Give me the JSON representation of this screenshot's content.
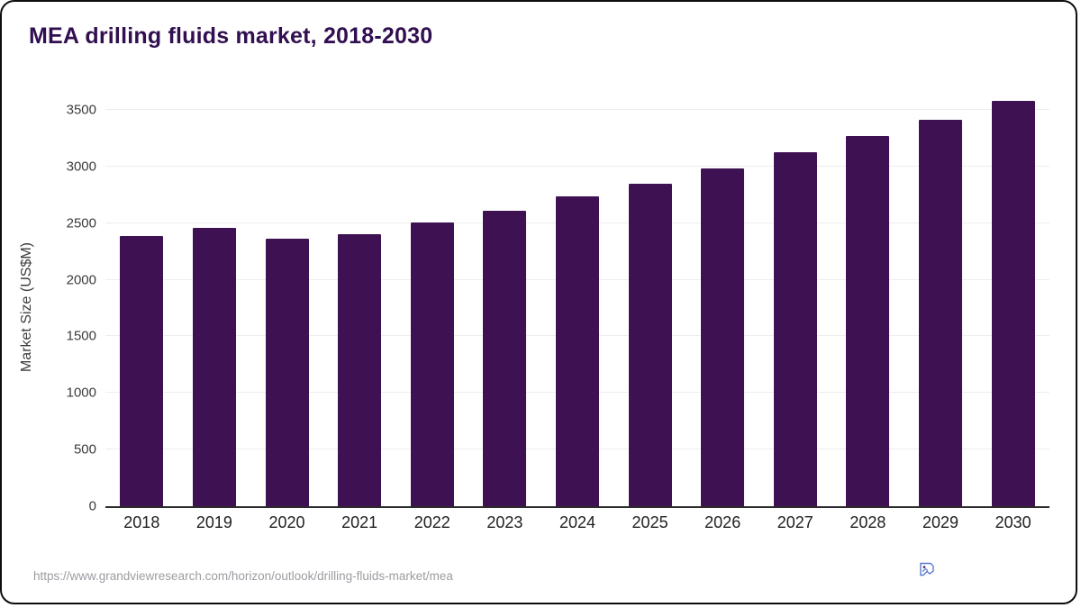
{
  "chart_data": {
    "type": "bar",
    "title": "MEA drilling fluids market, 2018-2030",
    "categories": [
      "2018",
      "2019",
      "2020",
      "2021",
      "2022",
      "2023",
      "2024",
      "2025",
      "2026",
      "2027",
      "2028",
      "2029",
      "2030"
    ],
    "values": [
      2390,
      2460,
      2360,
      2405,
      2505,
      2610,
      2735,
      2850,
      2985,
      3125,
      3270,
      3415,
      3580
    ],
    "xlabel": "",
    "ylabel": "Market Size (US$M)",
    "ylim": [
      0,
      3500
    ],
    "y_ticks": [
      0,
      500,
      1000,
      1500,
      2000,
      2500,
      3000,
      3500
    ],
    "grid": true,
    "legend": false,
    "bar_color": "#3e1153"
  },
  "footer": {
    "source_url": "https://www.grandviewresearch.com/horizon/outlook/drilling-fluids-market/mea"
  },
  "icons": {
    "broken_image": "broken-image-icon"
  },
  "colors": {
    "title": "#310f50",
    "bar": "#3e1153",
    "grid": "#ededed",
    "axis_text": "#3c3c3c",
    "footer_text": "#9c9ca2"
  }
}
